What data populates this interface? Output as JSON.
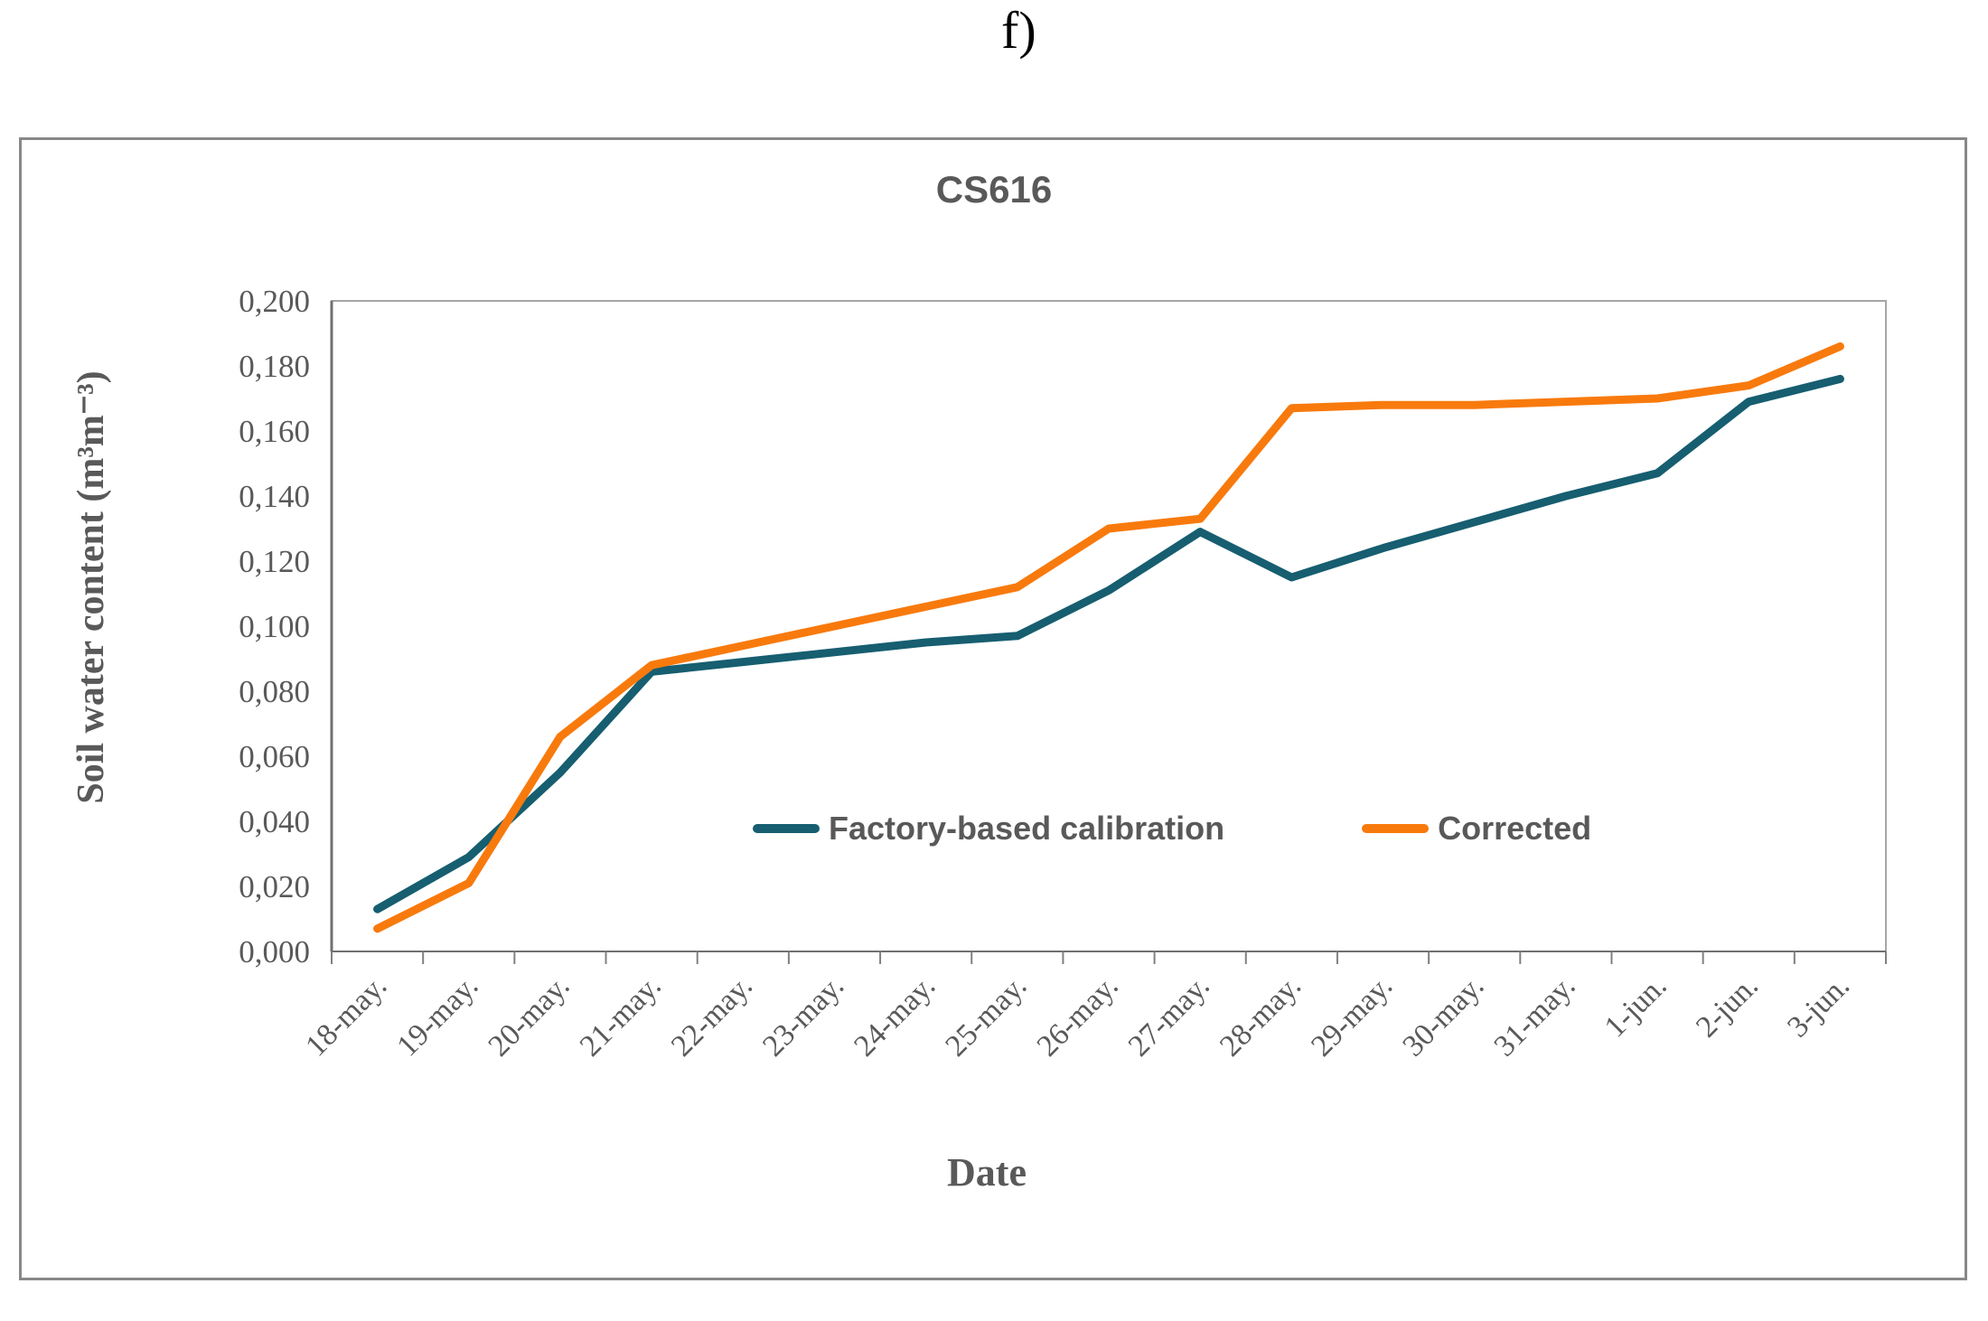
{
  "figure_label": "f)",
  "colors": {
    "text": "#595959",
    "axis_line": "#707070",
    "plot_border": "#A6A6A6",
    "tick": "#808080",
    "outer_border": "#888888",
    "background": "#FFFFFF"
  },
  "chart_data": {
    "type": "line",
    "title": "CS616",
    "xlabel": "Date",
    "ylabel": "Soil water content (m³m⁻³)",
    "ylim": [
      0.0,
      0.2
    ],
    "grid": false,
    "legend_position": "inside-bottom-center",
    "y_tick_values": [
      0.0,
      0.02,
      0.04,
      0.06,
      0.08,
      0.1,
      0.12,
      0.14,
      0.16,
      0.18,
      0.2
    ],
    "y_tick_labels": [
      "0,000",
      "0,020",
      "0,040",
      "0,060",
      "0,080",
      "0,100",
      "0,120",
      "0,140",
      "0,160",
      "0,180",
      "0,200"
    ],
    "categories": [
      "18-may.",
      "19-may.",
      "20-may.",
      "21-may.",
      "22-may.",
      "23-may.",
      "24-may.",
      "25-may.",
      "26-may.",
      "27-may.",
      "28-may.",
      "29-may.",
      "30-may.",
      "31-may.",
      "1-jun.",
      "2-jun.",
      "3-jun."
    ],
    "series": [
      {
        "name": "Factory-based calibration",
        "color": "#165E70",
        "values": [
          0.013,
          0.029,
          0.055,
          0.086,
          0.089,
          0.092,
          0.095,
          0.097,
          0.111,
          0.129,
          0.115,
          0.124,
          0.132,
          0.14,
          0.147,
          0.169,
          0.176
        ]
      },
      {
        "name": "Corrected",
        "color": "#F87A0D",
        "values": [
          0.007,
          0.021,
          0.066,
          0.088,
          0.094,
          0.1,
          0.106,
          0.112,
          0.13,
          0.133,
          0.167,
          0.168,
          0.168,
          0.169,
          0.17,
          0.174,
          0.186
        ]
      }
    ]
  }
}
